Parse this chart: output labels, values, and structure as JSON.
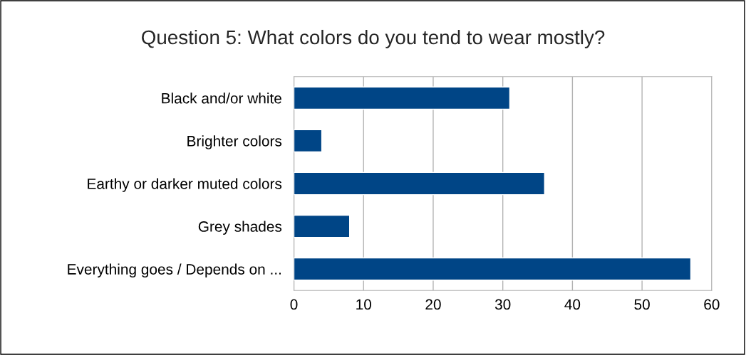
{
  "chart_data": {
    "type": "bar",
    "orientation": "horizontal",
    "title": "Question 5: What colors do you tend to wear mostly?",
    "categories": [
      "Black and/or white",
      "Brighter colors",
      "Earthy or darker muted colors",
      "Grey shades",
      "Everything goes / Depends on ..."
    ],
    "values": [
      31,
      4,
      36,
      8,
      57
    ],
    "color": "#004586",
    "xlim": [
      0,
      60
    ],
    "xticks": [
      0,
      10,
      20,
      30,
      40,
      50,
      60
    ],
    "grid": "x"
  }
}
